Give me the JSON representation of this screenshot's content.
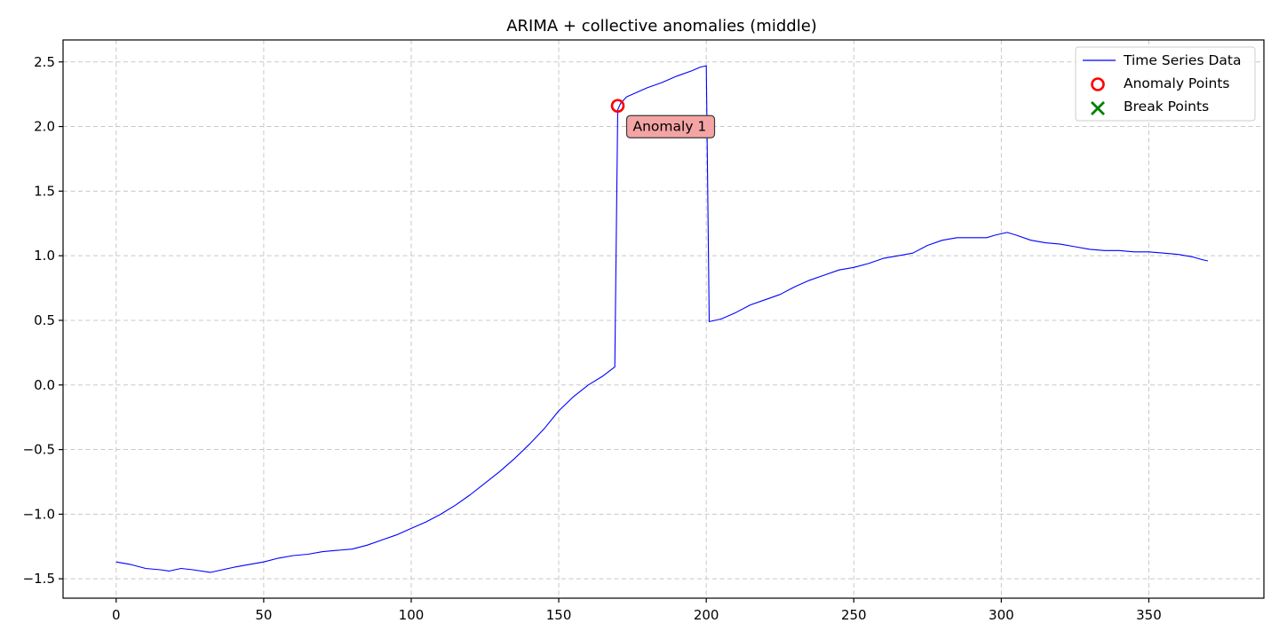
{
  "chart_data": {
    "type": "line",
    "title": "ARIMA + collective anomalies (middle)",
    "xlabel": "",
    "ylabel": "",
    "xlim": [
      -18,
      389
    ],
    "ylim": [
      -1.65,
      2.67
    ],
    "x_ticks": [
      0,
      50,
      100,
      150,
      200,
      250,
      300,
      350
    ],
    "x_tick_labels": [
      "0",
      "50",
      "100",
      "150",
      "200",
      "250",
      "300",
      "350"
    ],
    "y_ticks": [
      -1.5,
      -1.0,
      -0.5,
      0.0,
      0.5,
      1.0,
      1.5,
      2.0,
      2.5
    ],
    "y_tick_labels": [
      "−1.5",
      "−1.0",
      "−0.5",
      "0.0",
      "0.5",
      "1.0",
      "1.5",
      "2.0",
      "2.5"
    ],
    "grid": true,
    "legend_position": "top-right",
    "series": [
      {
        "name": "Time Series Data",
        "color": "#0000ff",
        "points": [
          [
            0,
            -1.37
          ],
          [
            5,
            -1.39
          ],
          [
            10,
            -1.42
          ],
          [
            15,
            -1.43
          ],
          [
            18,
            -1.44
          ],
          [
            22,
            -1.42
          ],
          [
            26,
            -1.43
          ],
          [
            32,
            -1.45
          ],
          [
            36,
            -1.43
          ],
          [
            40,
            -1.41
          ],
          [
            45,
            -1.39
          ],
          [
            50,
            -1.37
          ],
          [
            55,
            -1.34
          ],
          [
            60,
            -1.32
          ],
          [
            65,
            -1.31
          ],
          [
            70,
            -1.29
          ],
          [
            75,
            -1.28
          ],
          [
            80,
            -1.27
          ],
          [
            85,
            -1.24
          ],
          [
            90,
            -1.2
          ],
          [
            95,
            -1.16
          ],
          [
            100,
            -1.11
          ],
          [
            105,
            -1.06
          ],
          [
            110,
            -1.0
          ],
          [
            115,
            -0.93
          ],
          [
            120,
            -0.85
          ],
          [
            125,
            -0.76
          ],
          [
            130,
            -0.67
          ],
          [
            135,
            -0.57
          ],
          [
            140,
            -0.46
          ],
          [
            145,
            -0.34
          ],
          [
            150,
            -0.2
          ],
          [
            155,
            -0.09
          ],
          [
            160,
            0.0
          ],
          [
            165,
            0.07
          ],
          [
            169,
            0.14
          ],
          [
            170,
            2.13
          ],
          [
            171,
            2.18
          ],
          [
            173,
            2.23
          ],
          [
            176,
            2.26
          ],
          [
            180,
            2.3
          ],
          [
            185,
            2.34
          ],
          [
            190,
            2.39
          ],
          [
            195,
            2.43
          ],
          [
            198,
            2.46
          ],
          [
            200,
            2.47
          ],
          [
            201,
            0.49
          ],
          [
            205,
            0.51
          ],
          [
            210,
            0.56
          ],
          [
            215,
            0.62
          ],
          [
            220,
            0.66
          ],
          [
            225,
            0.7
          ],
          [
            230,
            0.76
          ],
          [
            235,
            0.81
          ],
          [
            240,
            0.85
          ],
          [
            245,
            0.89
          ],
          [
            250,
            0.91
          ],
          [
            255,
            0.94
          ],
          [
            260,
            0.98
          ],
          [
            265,
            1.0
          ],
          [
            270,
            1.02
          ],
          [
            275,
            1.08
          ],
          [
            280,
            1.12
          ],
          [
            285,
            1.14
          ],
          [
            290,
            1.14
          ],
          [
            295,
            1.14
          ],
          [
            298,
            1.16
          ],
          [
            302,
            1.18
          ],
          [
            305,
            1.16
          ],
          [
            310,
            1.12
          ],
          [
            315,
            1.1
          ],
          [
            320,
            1.09
          ],
          [
            325,
            1.07
          ],
          [
            330,
            1.05
          ],
          [
            335,
            1.04
          ],
          [
            340,
            1.04
          ],
          [
            345,
            1.03
          ],
          [
            350,
            1.03
          ],
          [
            355,
            1.02
          ],
          [
            360,
            1.01
          ],
          [
            365,
            0.99
          ],
          [
            368,
            0.97
          ],
          [
            370,
            0.96
          ]
        ]
      }
    ],
    "anomaly_points": {
      "name": "Anomaly Points",
      "color": "#ff0000",
      "points": [
        [
          170,
          2.16
        ]
      ]
    },
    "break_points": {
      "name": "Break Points",
      "color": "#008000",
      "points": []
    },
    "annotations": [
      {
        "text": "Anomaly 1",
        "x": 170,
        "y": 2.16
      }
    ]
  }
}
